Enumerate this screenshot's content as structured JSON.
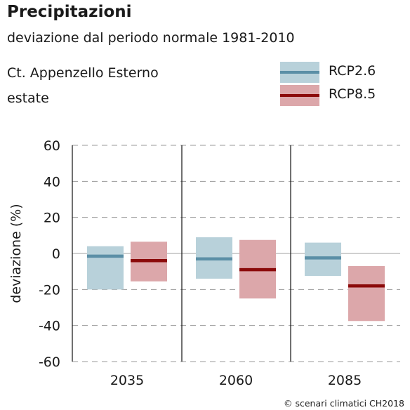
{
  "chart_data": {
    "type": "bar",
    "title": "Precipitazioni",
    "subtitle": "deviazione dal periodo normale 1981-2010",
    "region": "Ct. Appenzello Esterno",
    "season": "estate",
    "ylabel": "deviazione (%)",
    "xlabel": "",
    "ylim": [
      -60,
      60
    ],
    "yticks": [
      60,
      40,
      20,
      0,
      -20,
      -40,
      -60
    ],
    "categories": [
      "2035",
      "2060",
      "2085"
    ],
    "grid": "horizontal dashed",
    "legend_position": "top-right",
    "series": [
      {
        "name": "RCP2.6",
        "fill_color": "#b8d1da",
        "line_color": "#5b8fa6",
        "median": [
          -1.5,
          -3,
          -2.5
        ],
        "low": [
          -20,
          -14,
          -12.5
        ],
        "high": [
          4,
          9,
          6
        ]
      },
      {
        "name": "RCP8.5",
        "fill_color": "#dca7aa",
        "line_color": "#8b0a0a",
        "median": [
          -4,
          -9,
          -18
        ],
        "low": [
          -15.5,
          -25,
          -37.5
        ],
        "high": [
          6.5,
          7.5,
          -7
        ]
      }
    ]
  },
  "credit": "© scenari climatici CH2018"
}
